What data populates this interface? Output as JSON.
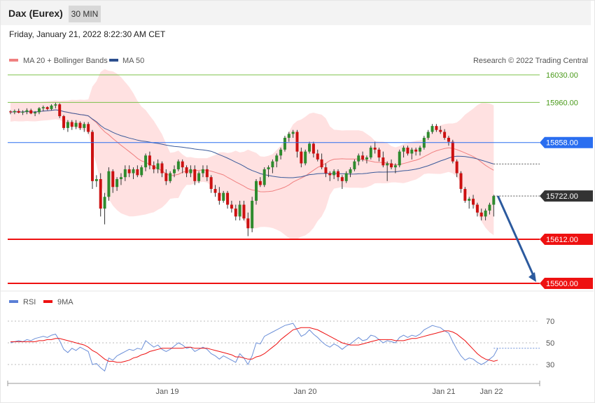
{
  "header": {
    "instrument": "Dax (Eurex)",
    "timeframe": "30 MIN",
    "timestamp": "Friday, January 21, 2022 8:22:30 AM CET"
  },
  "legend": {
    "ma20_label": "MA 20 + Bollinger Bands",
    "ma50_label": "MA 50",
    "copyright": "Research © 2022 Trading Central"
  },
  "rsi_legend": {
    "rsi_label": "RSI",
    "ma_label": "9MA"
  },
  "colors": {
    "ma20": "#f08080",
    "ma50": "#3a5a9a",
    "band_fill": "#ffdcdc",
    "up": "#2e8b2e",
    "down": "#cc1111",
    "target_green": "#7cc04a",
    "pivot_blue": "#2a6ef0",
    "support_red": "#ee1111",
    "current": "#333333",
    "arrow": "#2c5a9e"
  },
  "chart_data": {
    "type": "candlestick",
    "title": "Dax (Eurex)",
    "timeframe": "30 MIN",
    "ylim": [
      15470,
      16065
    ],
    "x_ticks": [
      "Jan 19",
      "Jan 20",
      "Jan 21",
      "Jan 22"
    ],
    "levels": [
      {
        "name": "resistance-2",
        "value": 15960,
        "label": "15960.00",
        "style": "thin-green"
      },
      {
        "name": "resistance-3",
        "value": 16030,
        "label": "16030.00",
        "style": "thin-green"
      },
      {
        "name": "pivot",
        "value": 15858,
        "label": "15858.00",
        "style": "blue"
      },
      {
        "name": "current-price",
        "value": 15722,
        "label": "15722.00",
        "style": "dark"
      },
      {
        "name": "support-1",
        "value": 15612,
        "label": "15612.00",
        "style": "red"
      },
      {
        "name": "support-2",
        "value": 15500,
        "label": "15500.00",
        "style": "red"
      }
    ],
    "forecast_arrow": {
      "from": 15722,
      "to": 15500
    },
    "candles": [
      [
        15937,
        15940,
        15930,
        15935
      ],
      [
        15935,
        15942,
        15930,
        15938
      ],
      [
        15938,
        15944,
        15932,
        15934
      ],
      [
        15934,
        15940,
        15928,
        15936
      ],
      [
        15936,
        15945,
        15930,
        15940
      ],
      [
        15940,
        15944,
        15930,
        15932
      ],
      [
        15932,
        15938,
        15925,
        15935
      ],
      [
        15935,
        15948,
        15930,
        15945
      ],
      [
        15945,
        15952,
        15938,
        15948
      ],
      [
        15948,
        15950,
        15940,
        15943
      ],
      [
        15943,
        15955,
        15940,
        15952
      ],
      [
        15952,
        15960,
        15945,
        15955
      ],
      [
        15955,
        15958,
        15920,
        15925
      ],
      [
        15925,
        15928,
        15890,
        15895
      ],
      [
        15895,
        15915,
        15885,
        15910
      ],
      [
        15910,
        15915,
        15890,
        15898
      ],
      [
        15898,
        15915,
        15892,
        15908
      ],
      [
        15908,
        15912,
        15890,
        15895
      ],
      [
        15895,
        15910,
        15885,
        15905
      ],
      [
        15905,
        15910,
        15880,
        15885
      ],
      [
        15885,
        15890,
        15740,
        15760
      ],
      [
        15760,
        15775,
        15745,
        15765
      ],
      [
        15765,
        15780,
        15670,
        15690
      ],
      [
        15690,
        15730,
        15650,
        15720
      ],
      [
        15720,
        15795,
        15710,
        15785
      ],
      [
        15785,
        15790,
        15730,
        15745
      ],
      [
        15745,
        15770,
        15735,
        15765
      ],
      [
        15765,
        15780,
        15750,
        15770
      ],
      [
        15770,
        15800,
        15760,
        15790
      ],
      [
        15790,
        15800,
        15770,
        15780
      ],
      [
        15780,
        15795,
        15765,
        15790
      ],
      [
        15790,
        15800,
        15770,
        15775
      ],
      [
        15775,
        15800,
        15770,
        15795
      ],
      [
        15795,
        15830,
        15785,
        15825
      ],
      [
        15825,
        15835,
        15790,
        15800
      ],
      [
        15800,
        15810,
        15780,
        15790
      ],
      [
        15790,
        15815,
        15780,
        15805
      ],
      [
        15805,
        15810,
        15770,
        15780
      ],
      [
        15780,
        15790,
        15750,
        15760
      ],
      [
        15760,
        15785,
        15755,
        15780
      ],
      [
        15780,
        15800,
        15770,
        15790
      ],
      [
        15790,
        15815,
        15785,
        15810
      ],
      [
        15810,
        15815,
        15780,
        15795
      ],
      [
        15795,
        15800,
        15770,
        15780
      ],
      [
        15780,
        15800,
        15770,
        15790
      ],
      [
        15790,
        15800,
        15750,
        15760
      ],
      [
        15760,
        15785,
        15755,
        15780
      ],
      [
        15780,
        15800,
        15770,
        15790
      ],
      [
        15790,
        15800,
        15760,
        15770
      ],
      [
        15770,
        15775,
        15730,
        15740
      ],
      [
        15740,
        15750,
        15720,
        15730
      ],
      [
        15730,
        15745,
        15700,
        15710
      ],
      [
        15710,
        15735,
        15705,
        15730
      ],
      [
        15730,
        15735,
        15690,
        15700
      ],
      [
        15700,
        15710,
        15680,
        15690
      ],
      [
        15690,
        15700,
        15660,
        15670
      ],
      [
        15670,
        15710,
        15660,
        15700
      ],
      [
        15700,
        15710,
        15660,
        15665
      ],
      [
        15665,
        15680,
        15620,
        15640
      ],
      [
        15640,
        15720,
        15630,
        15710
      ],
      [
        15710,
        15765,
        15700,
        15760
      ],
      [
        15760,
        15770,
        15745,
        15750
      ],
      [
        15750,
        15795,
        15745,
        15790
      ],
      [
        15790,
        15800,
        15770,
        15795
      ],
      [
        15795,
        15815,
        15780,
        15810
      ],
      [
        15810,
        15830,
        15795,
        15825
      ],
      [
        15825,
        15845,
        15815,
        15840
      ],
      [
        15840,
        15875,
        15835,
        15870
      ],
      [
        15870,
        15885,
        15860,
        15880
      ],
      [
        15880,
        15890,
        15870,
        15885
      ],
      [
        15885,
        15890,
        15820,
        15835
      ],
      [
        15835,
        15845,
        15795,
        15805
      ],
      [
        15805,
        15840,
        15800,
        15835
      ],
      [
        15835,
        15860,
        15830,
        15855
      ],
      [
        15855,
        15860,
        15820,
        15830
      ],
      [
        15830,
        15840,
        15810,
        15815
      ],
      [
        15815,
        15830,
        15790,
        15795
      ],
      [
        15795,
        15805,
        15770,
        15780
      ],
      [
        15780,
        15785,
        15760,
        15775
      ],
      [
        15775,
        15790,
        15765,
        15785
      ],
      [
        15785,
        15790,
        15760,
        15770
      ],
      [
        15770,
        15775,
        15740,
        15760
      ],
      [
        15760,
        15785,
        15755,
        15780
      ],
      [
        15780,
        15795,
        15770,
        15790
      ],
      [
        15790,
        15815,
        15785,
        15810
      ],
      [
        15810,
        15830,
        15800,
        15825
      ],
      [
        15825,
        15835,
        15810,
        15815
      ],
      [
        15815,
        15825,
        15805,
        15820
      ],
      [
        15820,
        15850,
        15815,
        15845
      ],
      [
        15845,
        15860,
        15830,
        15840
      ],
      [
        15840,
        15845,
        15810,
        15820
      ],
      [
        15820,
        15835,
        15795,
        15800
      ],
      [
        15800,
        15810,
        15760,
        15805
      ],
      [
        15805,
        15815,
        15790,
        15795
      ],
      [
        15795,
        15805,
        15780,
        15800
      ],
      [
        15800,
        15840,
        15795,
        15835
      ],
      [
        15835,
        15850,
        15820,
        15845
      ],
      [
        15845,
        15850,
        15825,
        15830
      ],
      [
        15830,
        15845,
        15815,
        15840
      ],
      [
        15840,
        15845,
        15825,
        15835
      ],
      [
        15835,
        15850,
        15825,
        15845
      ],
      [
        15845,
        15875,
        15840,
        15870
      ],
      [
        15870,
        15890,
        15865,
        15885
      ],
      [
        15885,
        15905,
        15880,
        15900
      ],
      [
        15900,
        15905,
        15885,
        15890
      ],
      [
        15890,
        15900,
        15880,
        15885
      ],
      [
        15885,
        15892,
        15865,
        15870
      ],
      [
        15870,
        15875,
        15850,
        15860
      ],
      [
        15860,
        15865,
        15805,
        15810
      ],
      [
        15810,
        15815,
        15770,
        15780
      ],
      [
        15780,
        15785,
        15730,
        15740
      ],
      [
        15740,
        15745,
        15705,
        15710
      ],
      [
        15710,
        15720,
        15690,
        15715
      ],
      [
        15715,
        15725,
        15690,
        15700
      ],
      [
        15700,
        15705,
        15670,
        15680
      ],
      [
        15680,
        15690,
        15660,
        15670
      ],
      [
        15670,
        15690,
        15660,
        15685
      ],
      [
        15685,
        15705,
        15675,
        15700
      ],
      [
        15700,
        15725,
        15670,
        15722
      ]
    ],
    "rsi": {
      "label": "RSI",
      "ylim": [
        10,
        85
      ],
      "ticks": [
        70,
        50,
        30
      ],
      "values": [
        50,
        51,
        52,
        51,
        53,
        52,
        54,
        55,
        56,
        55,
        57,
        58,
        52,
        44,
        41,
        45,
        43,
        46,
        44,
        42,
        30,
        31,
        27,
        24,
        36,
        34,
        38,
        40,
        42,
        44,
        43,
        45,
        44,
        52,
        49,
        46,
        48,
        44,
        42,
        44,
        47,
        50,
        48,
        45,
        46,
        42,
        44,
        46,
        44,
        40,
        38,
        35,
        38,
        36,
        34,
        32,
        40,
        36,
        30,
        38,
        50,
        49,
        56,
        58,
        60,
        62,
        64,
        66,
        67,
        68,
        62,
        56,
        58,
        62,
        58,
        55,
        51,
        48,
        46,
        49,
        47,
        44,
        47,
        49,
        52,
        55,
        52,
        53,
        57,
        56,
        53,
        50,
        52,
        51,
        50,
        55,
        57,
        55,
        57,
        56,
        58,
        62,
        64,
        66,
        65,
        64,
        61,
        59,
        51,
        44,
        38,
        34,
        36,
        35,
        32,
        30,
        32,
        35,
        38,
        45
      ],
      "ma_label": "9MA",
      "ma_values": [
        51,
        51,
        51,
        51,
        51,
        51,
        51,
        52,
        52,
        53,
        53,
        54,
        54,
        53,
        52,
        51,
        50,
        49,
        48,
        46,
        43,
        41,
        38,
        35,
        33,
        33,
        32,
        32,
        33,
        34,
        36,
        37,
        39,
        40,
        42,
        43,
        44,
        45,
        45,
        45,
        45,
        45,
        45,
        46,
        46,
        45,
        45,
        45,
        45,
        44,
        43,
        42,
        41,
        40,
        39,
        37,
        37,
        36,
        35,
        35,
        37,
        38,
        40,
        43,
        46,
        49,
        53,
        56,
        59,
        62,
        63,
        64,
        64,
        64,
        63,
        62,
        60,
        58,
        56,
        54,
        52,
        50,
        49,
        48,
        48,
        48,
        49,
        50,
        51,
        52,
        53,
        53,
        53,
        53,
        52,
        52,
        52,
        53,
        54,
        54,
        55,
        56,
        57,
        58,
        59,
        60,
        61,
        61,
        60,
        58,
        55,
        52,
        48,
        44,
        40,
        37,
        35,
        34,
        33,
        34
      ]
    },
    "rsi_levels": [
      70,
      50,
      30
    ]
  }
}
